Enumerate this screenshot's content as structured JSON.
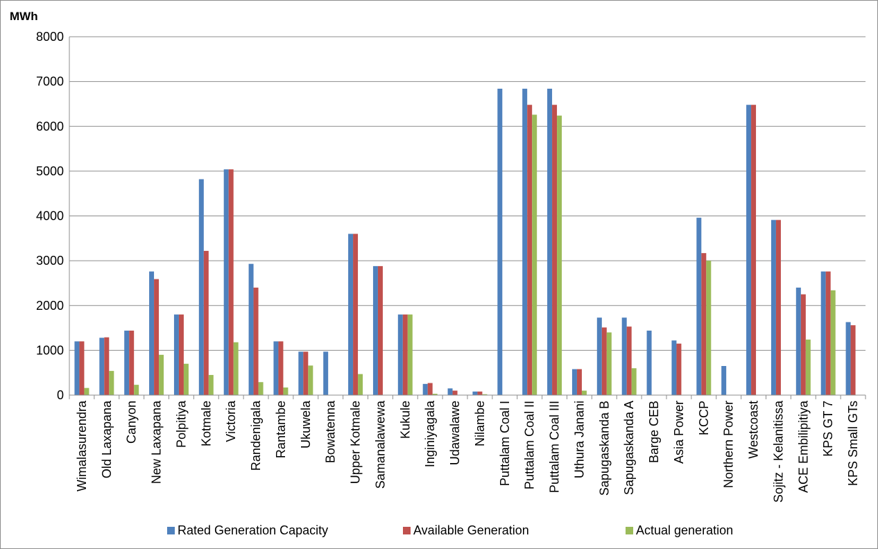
{
  "chart_data": {
    "type": "bar",
    "unit_label": "MWh",
    "ylim": [
      0,
      8000
    ],
    "yticks": [
      0,
      1000,
      2000,
      3000,
      4000,
      5000,
      6000,
      7000,
      8000
    ],
    "grid": true,
    "legend_position": "bottom",
    "categories": [
      "Wimalasurendra",
      "Old Laxapana",
      "Canyon",
      "New Laxapana",
      "Polpitiya",
      "Kotmale",
      "Victoria",
      "Randenigala",
      "Rantambe",
      "Ukuwela",
      "Bowatenna",
      "Upper Kotmale",
      "Samanalawewa",
      "Kukule",
      "Inginiyagala",
      "Udawalawe",
      "Nilambe",
      "Puttalam Coal I",
      "Puttalam Coal II",
      "Puttalam Coal III",
      "Uthura Janani",
      "Sapugaskanda B",
      "Sapugaskanda A",
      "Barge CEB",
      "Asia Power",
      "KCCP",
      "Northern Power",
      "Westcoast",
      "Sojitz - Kelanitissa",
      "ACE Embilipitiya",
      "KPS GT 7",
      "KPS Small GTs"
    ],
    "series": [
      {
        "name": "Rated Generation Capacity",
        "color": "#4f81bd",
        "values": [
          1200,
          1280,
          1440,
          2760,
          1800,
          4820,
          5040,
          2930,
          1200,
          970,
          970,
          3600,
          2880,
          1800,
          250,
          150,
          80,
          6840,
          6840,
          6840,
          580,
          1730,
          1730,
          1440,
          1220,
          3960,
          650,
          6480,
          3910,
          2400,
          2760,
          1630
        ]
      },
      {
        "name": "Available Generation",
        "color": "#c0504d",
        "values": [
          1200,
          1290,
          1440,
          2590,
          1800,
          3220,
          5040,
          2400,
          1200,
          970,
          0,
          3600,
          2880,
          1800,
          270,
          100,
          80,
          0,
          6480,
          6480,
          580,
          1510,
          1530,
          0,
          1150,
          3170,
          0,
          6480,
          3910,
          2250,
          2760,
          1560
        ]
      },
      {
        "name": "Actual generation",
        "color": "#9bbb59",
        "values": [
          160,
          540,
          230,
          900,
          700,
          450,
          1180,
          290,
          170,
          660,
          0,
          470,
          0,
          1800,
          30,
          0,
          20,
          0,
          6260,
          6240,
          100,
          1400,
          600,
          0,
          0,
          3000,
          0,
          0,
          0,
          1240,
          2340,
          0
        ]
      }
    ]
  }
}
